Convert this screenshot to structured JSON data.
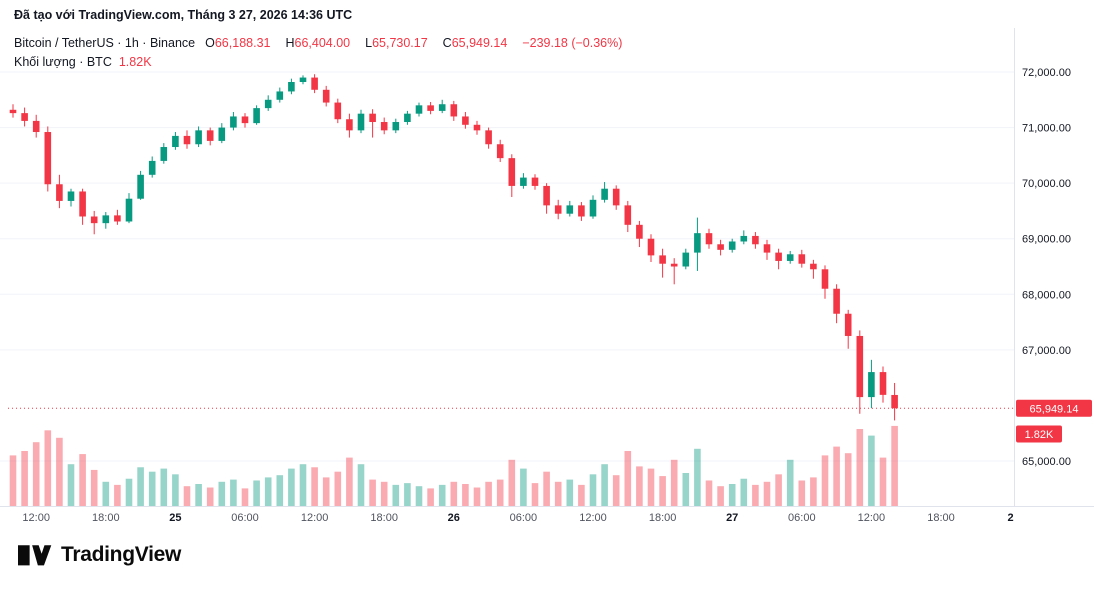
{
  "attribution": {
    "text": "Đã tạo với TradingView.com, Tháng 3 27, 2026 14:36 UTC"
  },
  "legend": {
    "symbol_text": "Bitcoin / TetherUS · 1h · Binance",
    "o_label": "O",
    "o_value": "66,188.31",
    "h_label": "H",
    "h_value": "66,404.00",
    "l_label": "L",
    "l_value": "65,730.17",
    "c_label": "C",
    "c_value": "65,949.14",
    "change": "−239.18 (−0.36%)",
    "volume_label": "Khối lượng · BTC",
    "volume_value": "1.82K"
  },
  "footer": {
    "brand": "TradingView"
  },
  "chart_data": {
    "type": "candlestick",
    "title": "Bitcoin / TetherUS · 1h · Binance",
    "pair": "Bitcoin / TetherUS",
    "interval": "1h",
    "exchange": "Binance",
    "last_ohlc": {
      "open": 66188.31,
      "high": 66404.0,
      "low": 65730.17,
      "close": 65949.14,
      "change": -239.18,
      "change_pct": -0.36
    },
    "price_ylim": [
      64200,
      72300
    ],
    "volume_ylim": [
      0,
      2.0
    ],
    "colors": {
      "up": "#089981",
      "down": "#F23645",
      "axis_line": "#e0e3eb",
      "grid": "#f0f3fa",
      "text": "#131722",
      "muted_text": "#50535e",
      "badge_text": "#ffffff"
    },
    "y_ticks": [
      {
        "label": "72,000.00",
        "value": 72000
      },
      {
        "label": "71,000.00",
        "value": 71000
      },
      {
        "label": "70,000.00",
        "value": 70000
      },
      {
        "label": "69,000.00",
        "value": 69000
      },
      {
        "label": "68,000.00",
        "value": 68000
      },
      {
        "label": "67,000.00",
        "value": 67000
      },
      {
        "label": "65,000.00",
        "value": 65000
      }
    ],
    "x_ticks": [
      {
        "label": "12:00",
        "i": 2,
        "bold": false
      },
      {
        "label": "18:00",
        "i": 8,
        "bold": false
      },
      {
        "label": "25",
        "i": 14,
        "bold": true
      },
      {
        "label": "06:00",
        "i": 20,
        "bold": false
      },
      {
        "label": "12:00",
        "i": 26,
        "bold": false
      },
      {
        "label": "18:00",
        "i": 32,
        "bold": false
      },
      {
        "label": "26",
        "i": 38,
        "bold": true
      },
      {
        "label": "06:00",
        "i": 44,
        "bold": false
      },
      {
        "label": "12:00",
        "i": 50,
        "bold": false
      },
      {
        "label": "18:00",
        "i": 56,
        "bold": false
      },
      {
        "label": "27",
        "i": 62,
        "bold": true
      },
      {
        "label": "06:00",
        "i": 68,
        "bold": false
      },
      {
        "label": "12:00",
        "i": 74,
        "bold": false
      },
      {
        "label": "18:00",
        "i": 80,
        "bold": false
      },
      {
        "label": "2",
        "i": 86,
        "bold": true
      }
    ],
    "last_price": {
      "value": 65949.14,
      "label": "65,949.14"
    },
    "last_volume": {
      "value": 1.82,
      "label": "1.82K"
    },
    "candle_columns": [
      "open",
      "high",
      "low",
      "close",
      "volume_kbtc"
    ],
    "candles": [
      [
        71320,
        71420,
        71180,
        71260,
        1.15
      ],
      [
        71260,
        71360,
        71020,
        71120,
        1.25
      ],
      [
        71120,
        71230,
        70820,
        70920,
        1.45
      ],
      [
        70920,
        71020,
        69850,
        69980,
        1.72
      ],
      [
        69980,
        70150,
        69550,
        69680,
        1.55
      ],
      [
        69680,
        69900,
        69580,
        69850,
        0.95
      ],
      [
        69850,
        69900,
        69250,
        69400,
        1.18
      ],
      [
        69400,
        69500,
        69080,
        69280,
        0.82
      ],
      [
        69280,
        69480,
        69180,
        69420,
        0.55
      ],
      [
        69420,
        69520,
        69250,
        69310,
        0.48
      ],
      [
        69310,
        69820,
        69280,
        69720,
        0.62
      ],
      [
        69720,
        70220,
        69700,
        70150,
        0.88
      ],
      [
        70150,
        70480,
        70100,
        70400,
        0.78
      ],
      [
        70400,
        70720,
        70350,
        70650,
        0.85
      ],
      [
        70650,
        70920,
        70600,
        70850,
        0.72
      ],
      [
        70850,
        70950,
        70620,
        70700,
        0.45
      ],
      [
        70700,
        71020,
        70650,
        70950,
        0.5
      ],
      [
        70950,
        71000,
        70680,
        70760,
        0.42
      ],
      [
        70760,
        71080,
        70720,
        71000,
        0.55
      ],
      [
        71000,
        71280,
        70950,
        71200,
        0.6
      ],
      [
        71200,
        71260,
        71000,
        71080,
        0.4
      ],
      [
        71080,
        71400,
        71050,
        71350,
        0.58
      ],
      [
        71350,
        71580,
        71300,
        71500,
        0.65
      ],
      [
        71500,
        71720,
        71450,
        71650,
        0.7
      ],
      [
        71650,
        71880,
        71600,
        71820,
        0.85
      ],
      [
        71820,
        71940,
        71780,
        71900,
        0.95
      ],
      [
        71900,
        71960,
        71620,
        71680,
        0.88
      ],
      [
        71680,
        71750,
        71380,
        71450,
        0.65
      ],
      [
        71450,
        71520,
        71080,
        71150,
        0.78
      ],
      [
        71150,
        71250,
        70820,
        70950,
        1.1
      ],
      [
        70950,
        71320,
        70900,
        71250,
        0.95
      ],
      [
        71250,
        71330,
        70820,
        71100,
        0.6
      ],
      [
        71100,
        71180,
        70880,
        70950,
        0.55
      ],
      [
        70950,
        71160,
        70900,
        71100,
        0.48
      ],
      [
        71100,
        71300,
        71050,
        71250,
        0.52
      ],
      [
        71250,
        71450,
        71200,
        71400,
        0.45
      ],
      [
        71400,
        71460,
        71240,
        71300,
        0.4
      ],
      [
        71300,
        71500,
        71260,
        71420,
        0.48
      ],
      [
        71420,
        71480,
        71120,
        71200,
        0.55
      ],
      [
        71200,
        71280,
        70980,
        71050,
        0.5
      ],
      [
        71050,
        71120,
        70870,
        70950,
        0.42
      ],
      [
        70950,
        71000,
        70620,
        70700,
        0.55
      ],
      [
        70700,
        70780,
        70380,
        70450,
        0.6
      ],
      [
        70450,
        70520,
        69750,
        69950,
        1.05
      ],
      [
        69950,
        70180,
        69900,
        70100,
        0.85
      ],
      [
        70100,
        70160,
        69880,
        69950,
        0.52
      ],
      [
        69950,
        70000,
        69450,
        69600,
        0.78
      ],
      [
        69600,
        69700,
        69350,
        69450,
        0.55
      ],
      [
        69450,
        69680,
        69400,
        69600,
        0.6
      ],
      [
        69600,
        69660,
        69320,
        69400,
        0.48
      ],
      [
        69400,
        69780,
        69360,
        69700,
        0.72
      ],
      [
        69700,
        70020,
        69650,
        69900,
        0.95
      ],
      [
        69900,
        69960,
        69520,
        69600,
        0.7
      ],
      [
        69600,
        69680,
        69120,
        69250,
        1.25
      ],
      [
        69250,
        69320,
        68850,
        69000,
        0.9
      ],
      [
        69000,
        69080,
        68580,
        68700,
        0.85
      ],
      [
        68700,
        68820,
        68300,
        68550,
        0.68
      ],
      [
        68550,
        68650,
        68180,
        68500,
        1.05
      ],
      [
        68500,
        68820,
        68450,
        68750,
        0.75
      ],
      [
        68750,
        69380,
        68420,
        69100,
        1.3
      ],
      [
        69100,
        69180,
        68820,
        68900,
        0.58
      ],
      [
        68900,
        68980,
        68700,
        68800,
        0.45
      ],
      [
        68800,
        69000,
        68750,
        68950,
        0.5
      ],
      [
        68950,
        69150,
        68900,
        69050,
        0.62
      ],
      [
        69050,
        69120,
        68820,
        68900,
        0.48
      ],
      [
        68900,
        68980,
        68620,
        68750,
        0.55
      ],
      [
        68750,
        68820,
        68450,
        68600,
        0.72
      ],
      [
        68600,
        68780,
        68550,
        68720,
        1.05
      ],
      [
        68720,
        68800,
        68480,
        68550,
        0.58
      ],
      [
        68550,
        68620,
        68280,
        68450,
        0.65
      ],
      [
        68450,
        68520,
        67920,
        68100,
        1.15
      ],
      [
        68100,
        68180,
        67480,
        67650,
        1.35
      ],
      [
        67650,
        67720,
        67020,
        67250,
        1.2
      ],
      [
        67250,
        67350,
        65850,
        66150,
        1.75
      ],
      [
        66150,
        66820,
        65950,
        66600,
        1.6
      ],
      [
        66600,
        66700,
        66050,
        66190,
        1.1
      ],
      [
        66188.31,
        66404.0,
        65730.17,
        65949.14,
        1.82
      ]
    ]
  }
}
